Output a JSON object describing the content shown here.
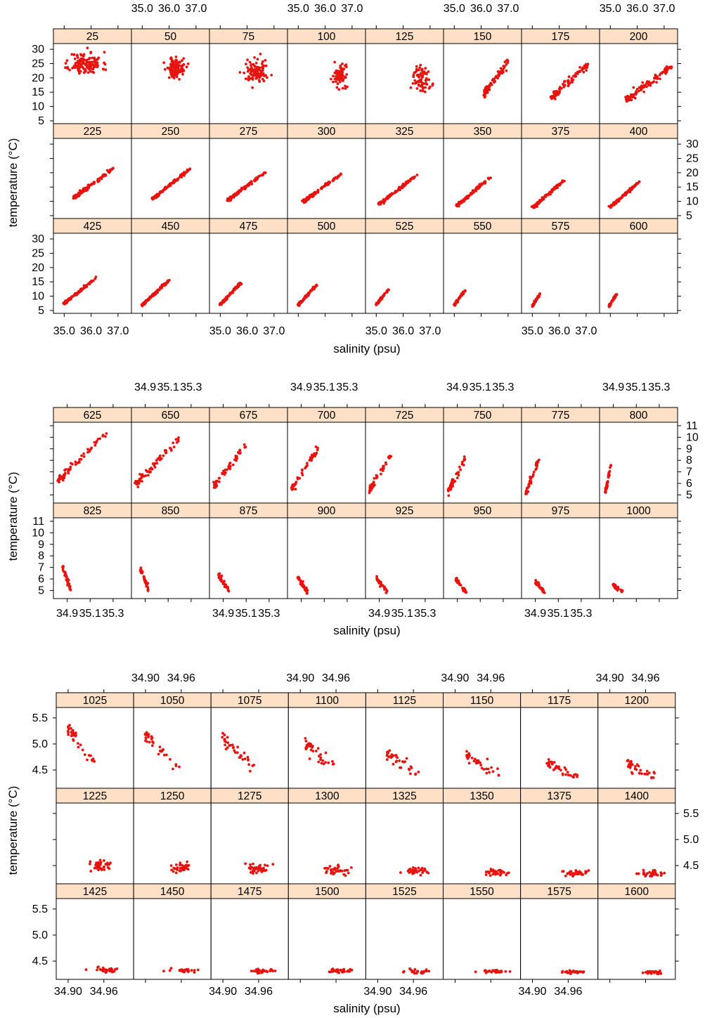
{
  "colors": {
    "point": "#e8130f",
    "strip": "#fde0c5",
    "frame": "#000000"
  },
  "chart_data": [
    {
      "type": "scatter",
      "xlabel": "salinity (psu)",
      "ylabel": "temperature (°C)",
      "xlim": [
        34.6,
        37.5
      ],
      "ylim": [
        4,
        32
      ],
      "x_ticks": [
        "35.0",
        "36.0",
        "37.0"
      ],
      "x_tick_values": [
        35.0,
        36.0,
        37.0
      ],
      "y_ticks": [
        "5",
        "10",
        "15",
        "20",
        "25",
        "30"
      ],
      "y_tick_values": [
        5,
        10,
        15,
        20,
        25,
        30
      ],
      "panels": [
        {
          "depth": "25",
          "shape": "cloud",
          "sc": 35.8,
          "tc": 25.0,
          "sw": 0.6,
          "tw": 4.0,
          "n": 130
        },
        {
          "depth": "50",
          "shape": "cloud",
          "sc": 36.25,
          "tc": 23.5,
          "sw": 0.35,
          "tw": 3.5,
          "n": 100
        },
        {
          "depth": "75",
          "shape": "cloud",
          "sc": 36.3,
          "tc": 22.0,
          "sw": 0.4,
          "tw": 4.0,
          "n": 100
        },
        {
          "depth": "100",
          "shape": "cloud",
          "sc": 36.55,
          "tc": 20.5,
          "sw": 0.25,
          "tw": 4.0,
          "n": 80
        },
        {
          "depth": "125",
          "shape": "cloud",
          "sc": 36.65,
          "tc": 19.5,
          "sw": 0.3,
          "tw": 4.5,
          "n": 80
        },
        {
          "depth": "150",
          "shape": "line",
          "s0": 36.1,
          "t0": 14.5,
          "s1": 37.0,
          "t1": 25.5,
          "spread": 1.5,
          "n": 80
        },
        {
          "depth": "175",
          "shape": "line",
          "s0": 35.7,
          "t0": 13.0,
          "s1": 37.1,
          "t1": 25.0,
          "spread": 1.3,
          "n": 90
        },
        {
          "depth": "200",
          "shape": "line",
          "s0": 35.6,
          "t0": 12.5,
          "s1": 37.3,
          "t1": 24.0,
          "spread": 1.2,
          "n": 100
        },
        {
          "depth": "225",
          "shape": "line",
          "s0": 35.4,
          "t0": 11.5,
          "s1": 36.9,
          "t1": 22.0,
          "spread": 0.5,
          "n": 110
        },
        {
          "depth": "250",
          "shape": "line",
          "s0": 35.4,
          "t0": 11.0,
          "s1": 36.8,
          "t1": 21.5,
          "spread": 0.4,
          "n": 110
        },
        {
          "depth": "275",
          "shape": "line",
          "s0": 35.3,
          "t0": 10.5,
          "s1": 36.7,
          "t1": 20.5,
          "spread": 0.4,
          "n": 110
        },
        {
          "depth": "300",
          "shape": "line",
          "s0": 35.2,
          "t0": 10.0,
          "s1": 36.6,
          "t1": 19.5,
          "spread": 0.4,
          "n": 110
        },
        {
          "depth": "325",
          "shape": "line",
          "s0": 35.1,
          "t0": 9.0,
          "s1": 36.5,
          "t1": 19.0,
          "spread": 0.4,
          "n": 110
        },
        {
          "depth": "350",
          "shape": "line",
          "s0": 35.1,
          "t0": 8.5,
          "s1": 36.3,
          "t1": 18.0,
          "spread": 0.4,
          "n": 110
        },
        {
          "depth": "375",
          "shape": "line",
          "s0": 35.05,
          "t0": 8.0,
          "s1": 36.2,
          "t1": 17.5,
          "spread": 0.4,
          "n": 110
        },
        {
          "depth": "400",
          "shape": "line",
          "s0": 35.0,
          "t0": 8.0,
          "s1": 36.1,
          "t1": 17.0,
          "spread": 0.4,
          "n": 110
        },
        {
          "depth": "425",
          "shape": "line",
          "s0": 35.0,
          "t0": 7.5,
          "s1": 36.2,
          "t1": 16.5,
          "spread": 0.4,
          "n": 100
        },
        {
          "depth": "450",
          "shape": "line",
          "s0": 35.0,
          "t0": 7.0,
          "s1": 36.0,
          "t1": 15.5,
          "spread": 0.4,
          "n": 100
        },
        {
          "depth": "475",
          "shape": "line",
          "s0": 35.0,
          "t0": 7.0,
          "s1": 35.8,
          "t1": 15.0,
          "spread": 0.4,
          "n": 90
        },
        {
          "depth": "500",
          "shape": "line",
          "s0": 35.0,
          "t0": 7.0,
          "s1": 35.7,
          "t1": 14.0,
          "spread": 0.4,
          "n": 80
        },
        {
          "depth": "525",
          "shape": "line",
          "s0": 35.0,
          "t0": 7.0,
          "s1": 35.5,
          "t1": 13.0,
          "spread": 0.4,
          "n": 60
        },
        {
          "depth": "550",
          "shape": "line",
          "s0": 35.0,
          "t0": 7.0,
          "s1": 35.4,
          "t1": 12.0,
          "spread": 0.4,
          "n": 55
        },
        {
          "depth": "575",
          "shape": "line",
          "s0": 35.0,
          "t0": 6.5,
          "s1": 35.3,
          "t1": 11.0,
          "spread": 0.4,
          "n": 50
        },
        {
          "depth": "600",
          "shape": "line",
          "s0": 34.95,
          "t0": 6.5,
          "s1": 35.25,
          "t1": 11.0,
          "spread": 0.4,
          "n": 45
        }
      ]
    },
    {
      "type": "scatter",
      "xlabel": "salinity (psu)",
      "ylabel": "temperature (°C)",
      "xlim": [
        34.78,
        35.46
      ],
      "ylim": [
        4.3,
        11.3
      ],
      "x_ticks": [
        "34.9",
        "35.1",
        "35.3"
      ],
      "x_tick_values": [
        34.9,
        35.1,
        35.3
      ],
      "y_ticks": [
        "5",
        "6",
        "7",
        "8",
        "9",
        "10",
        "11"
      ],
      "y_tick_values": [
        5,
        6,
        7,
        8,
        9,
        10,
        11
      ],
      "panels": [
        {
          "depth": "625",
          "shape": "line",
          "s0": 34.82,
          "t0": 6.2,
          "s1": 35.25,
          "t1": 10.5,
          "spread": 0.35,
          "n": 60
        },
        {
          "depth": "650",
          "shape": "line",
          "s0": 34.82,
          "t0": 6.0,
          "s1": 35.2,
          "t1": 9.8,
          "spread": 0.35,
          "n": 60
        },
        {
          "depth": "675",
          "shape": "line",
          "s0": 34.82,
          "t0": 5.8,
          "s1": 35.1,
          "t1": 9.3,
          "spread": 0.35,
          "n": 55
        },
        {
          "depth": "700",
          "shape": "line",
          "s0": 34.82,
          "t0": 5.6,
          "s1": 35.05,
          "t1": 9.0,
          "spread": 0.35,
          "n": 50
        },
        {
          "depth": "725",
          "shape": "line",
          "s0": 34.82,
          "t0": 5.5,
          "s1": 35.0,
          "t1": 8.5,
          "spread": 0.3,
          "n": 45
        },
        {
          "depth": "750",
          "shape": "line",
          "s0": 34.82,
          "t0": 5.3,
          "s1": 34.97,
          "t1": 8.2,
          "spread": 0.3,
          "n": 45
        },
        {
          "depth": "775",
          "shape": "line",
          "s0": 34.82,
          "t0": 5.2,
          "s1": 34.93,
          "t1": 8.0,
          "spread": 0.3,
          "n": 45
        },
        {
          "depth": "800",
          "shape": "line",
          "s0": 34.83,
          "t0": 5.2,
          "s1": 34.88,
          "t1": 7.6,
          "spread": 0.25,
          "n": 45
        },
        {
          "depth": "825",
          "shape": "line",
          "s0": 34.86,
          "t0": 7.0,
          "s1": 34.93,
          "t1": 5.1,
          "spread": 0.3,
          "n": 40
        },
        {
          "depth": "850",
          "shape": "line",
          "s0": 34.86,
          "t0": 6.8,
          "s1": 34.93,
          "t1": 5.0,
          "spread": 0.3,
          "n": 40
        },
        {
          "depth": "875",
          "shape": "line",
          "s0": 34.86,
          "t0": 6.3,
          "s1": 34.95,
          "t1": 5.0,
          "spread": 0.25,
          "n": 40
        },
        {
          "depth": "900",
          "shape": "line",
          "s0": 34.87,
          "t0": 6.1,
          "s1": 34.96,
          "t1": 4.9,
          "spread": 0.25,
          "n": 40
        },
        {
          "depth": "925",
          "shape": "line",
          "s0": 34.88,
          "t0": 6.0,
          "s1": 34.97,
          "t1": 4.9,
          "spread": 0.2,
          "n": 40
        },
        {
          "depth": "950",
          "shape": "line",
          "s0": 34.89,
          "t0": 5.9,
          "s1": 34.98,
          "t1": 4.8,
          "spread": 0.2,
          "n": 40
        },
        {
          "depth": "975",
          "shape": "line",
          "s0": 34.9,
          "t0": 5.7,
          "s1": 34.99,
          "t1": 4.8,
          "spread": 0.2,
          "n": 35
        },
        {
          "depth": "1000",
          "shape": "line",
          "s0": 34.9,
          "t0": 5.5,
          "s1": 35.0,
          "t1": 4.7,
          "spread": 0.2,
          "n": 35
        }
      ]
    },
    {
      "type": "scatter",
      "xlabel": "salinity (psu)",
      "ylabel": "temperature (°C)",
      "xlim": [
        34.88,
        35.01
      ],
      "ylim": [
        4.15,
        5.7
      ],
      "x_ticks": [
        "34.90",
        "34.96"
      ],
      "x_tick_values": [
        34.9,
        34.96
      ],
      "y_ticks": [
        "4.5",
        "5.0",
        "5.5"
      ],
      "y_tick_values": [
        4.5,
        5.0,
        5.5
      ],
      "panels": [
        {
          "depth": "1025",
          "shape": "line",
          "s0": 34.9,
          "t0": 5.3,
          "s1": 34.95,
          "t1": 4.55,
          "spread": 0.12,
          "n": 35
        },
        {
          "depth": "1050",
          "shape": "line",
          "s0": 34.9,
          "t0": 5.2,
          "s1": 34.955,
          "t1": 4.5,
          "spread": 0.12,
          "n": 35
        },
        {
          "depth": "1075",
          "shape": "line",
          "s0": 34.9,
          "t0": 5.1,
          "s1": 34.96,
          "t1": 4.45,
          "spread": 0.12,
          "n": 35
        },
        {
          "depth": "1100",
          "shape": "line",
          "s0": 34.91,
          "t0": 5.0,
          "s1": 34.965,
          "t1": 4.45,
          "spread": 0.12,
          "n": 35
        },
        {
          "depth": "1125",
          "shape": "line",
          "s0": 34.915,
          "t0": 4.85,
          "s1": 34.97,
          "t1": 4.4,
          "spread": 0.1,
          "n": 35
        },
        {
          "depth": "1150",
          "shape": "line",
          "s0": 34.92,
          "t0": 4.75,
          "s1": 34.975,
          "t1": 4.4,
          "spread": 0.1,
          "n": 35
        },
        {
          "depth": "1175",
          "shape": "line",
          "s0": 34.925,
          "t0": 4.65,
          "s1": 34.975,
          "t1": 4.35,
          "spread": 0.1,
          "n": 35
        },
        {
          "depth": "1200",
          "shape": "line",
          "s0": 34.93,
          "t0": 4.6,
          "s1": 34.98,
          "t1": 4.35,
          "spread": 0.1,
          "n": 35
        },
        {
          "depth": "1225",
          "shape": "cloud",
          "sc": 34.955,
          "tc": 4.5,
          "sw": 0.018,
          "tw": 0.13,
          "n": 35
        },
        {
          "depth": "1250",
          "shape": "cloud",
          "sc": 34.958,
          "tc": 4.47,
          "sw": 0.018,
          "tw": 0.12,
          "n": 35
        },
        {
          "depth": "1275",
          "shape": "cloud",
          "sc": 34.96,
          "tc": 4.45,
          "sw": 0.02,
          "tw": 0.1,
          "n": 35
        },
        {
          "depth": "1300",
          "shape": "cloud",
          "sc": 34.962,
          "tc": 4.42,
          "sw": 0.02,
          "tw": 0.08,
          "n": 35
        },
        {
          "depth": "1325",
          "shape": "cloud",
          "sc": 34.965,
          "tc": 4.4,
          "sw": 0.02,
          "tw": 0.07,
          "n": 35
        },
        {
          "depth": "1350",
          "shape": "cloud",
          "sc": 34.967,
          "tc": 4.38,
          "sw": 0.02,
          "tw": 0.06,
          "n": 35
        },
        {
          "depth": "1375",
          "shape": "cloud",
          "sc": 34.968,
          "tc": 4.36,
          "sw": 0.02,
          "tw": 0.06,
          "n": 35
        },
        {
          "depth": "1400",
          "shape": "cloud",
          "sc": 34.97,
          "tc": 4.35,
          "sw": 0.02,
          "tw": 0.05,
          "n": 35
        },
        {
          "depth": "1425",
          "shape": "cloud",
          "sc": 34.962,
          "tc": 4.33,
          "sw": 0.02,
          "tw": 0.05,
          "n": 30
        },
        {
          "depth": "1450",
          "shape": "cloud",
          "sc": 34.965,
          "tc": 4.32,
          "sw": 0.02,
          "tw": 0.05,
          "n": 30
        },
        {
          "depth": "1475",
          "shape": "cloud",
          "sc": 34.966,
          "tc": 4.31,
          "sw": 0.02,
          "tw": 0.04,
          "n": 30
        },
        {
          "depth": "1500",
          "shape": "cloud",
          "sc": 34.968,
          "tc": 4.31,
          "sw": 0.02,
          "tw": 0.04,
          "n": 30
        },
        {
          "depth": "1525",
          "shape": "cloud",
          "sc": 34.968,
          "tc": 4.3,
          "sw": 0.02,
          "tw": 0.04,
          "n": 30
        },
        {
          "depth": "1550",
          "shape": "cloud",
          "sc": 34.97,
          "tc": 4.3,
          "sw": 0.02,
          "tw": 0.03,
          "n": 30
        },
        {
          "depth": "1575",
          "shape": "cloud",
          "sc": 34.97,
          "tc": 4.29,
          "sw": 0.02,
          "tw": 0.03,
          "n": 30
        },
        {
          "depth": "1600",
          "shape": "cloud",
          "sc": 34.972,
          "tc": 4.28,
          "sw": 0.02,
          "tw": 0.03,
          "n": 30
        }
      ]
    }
  ]
}
